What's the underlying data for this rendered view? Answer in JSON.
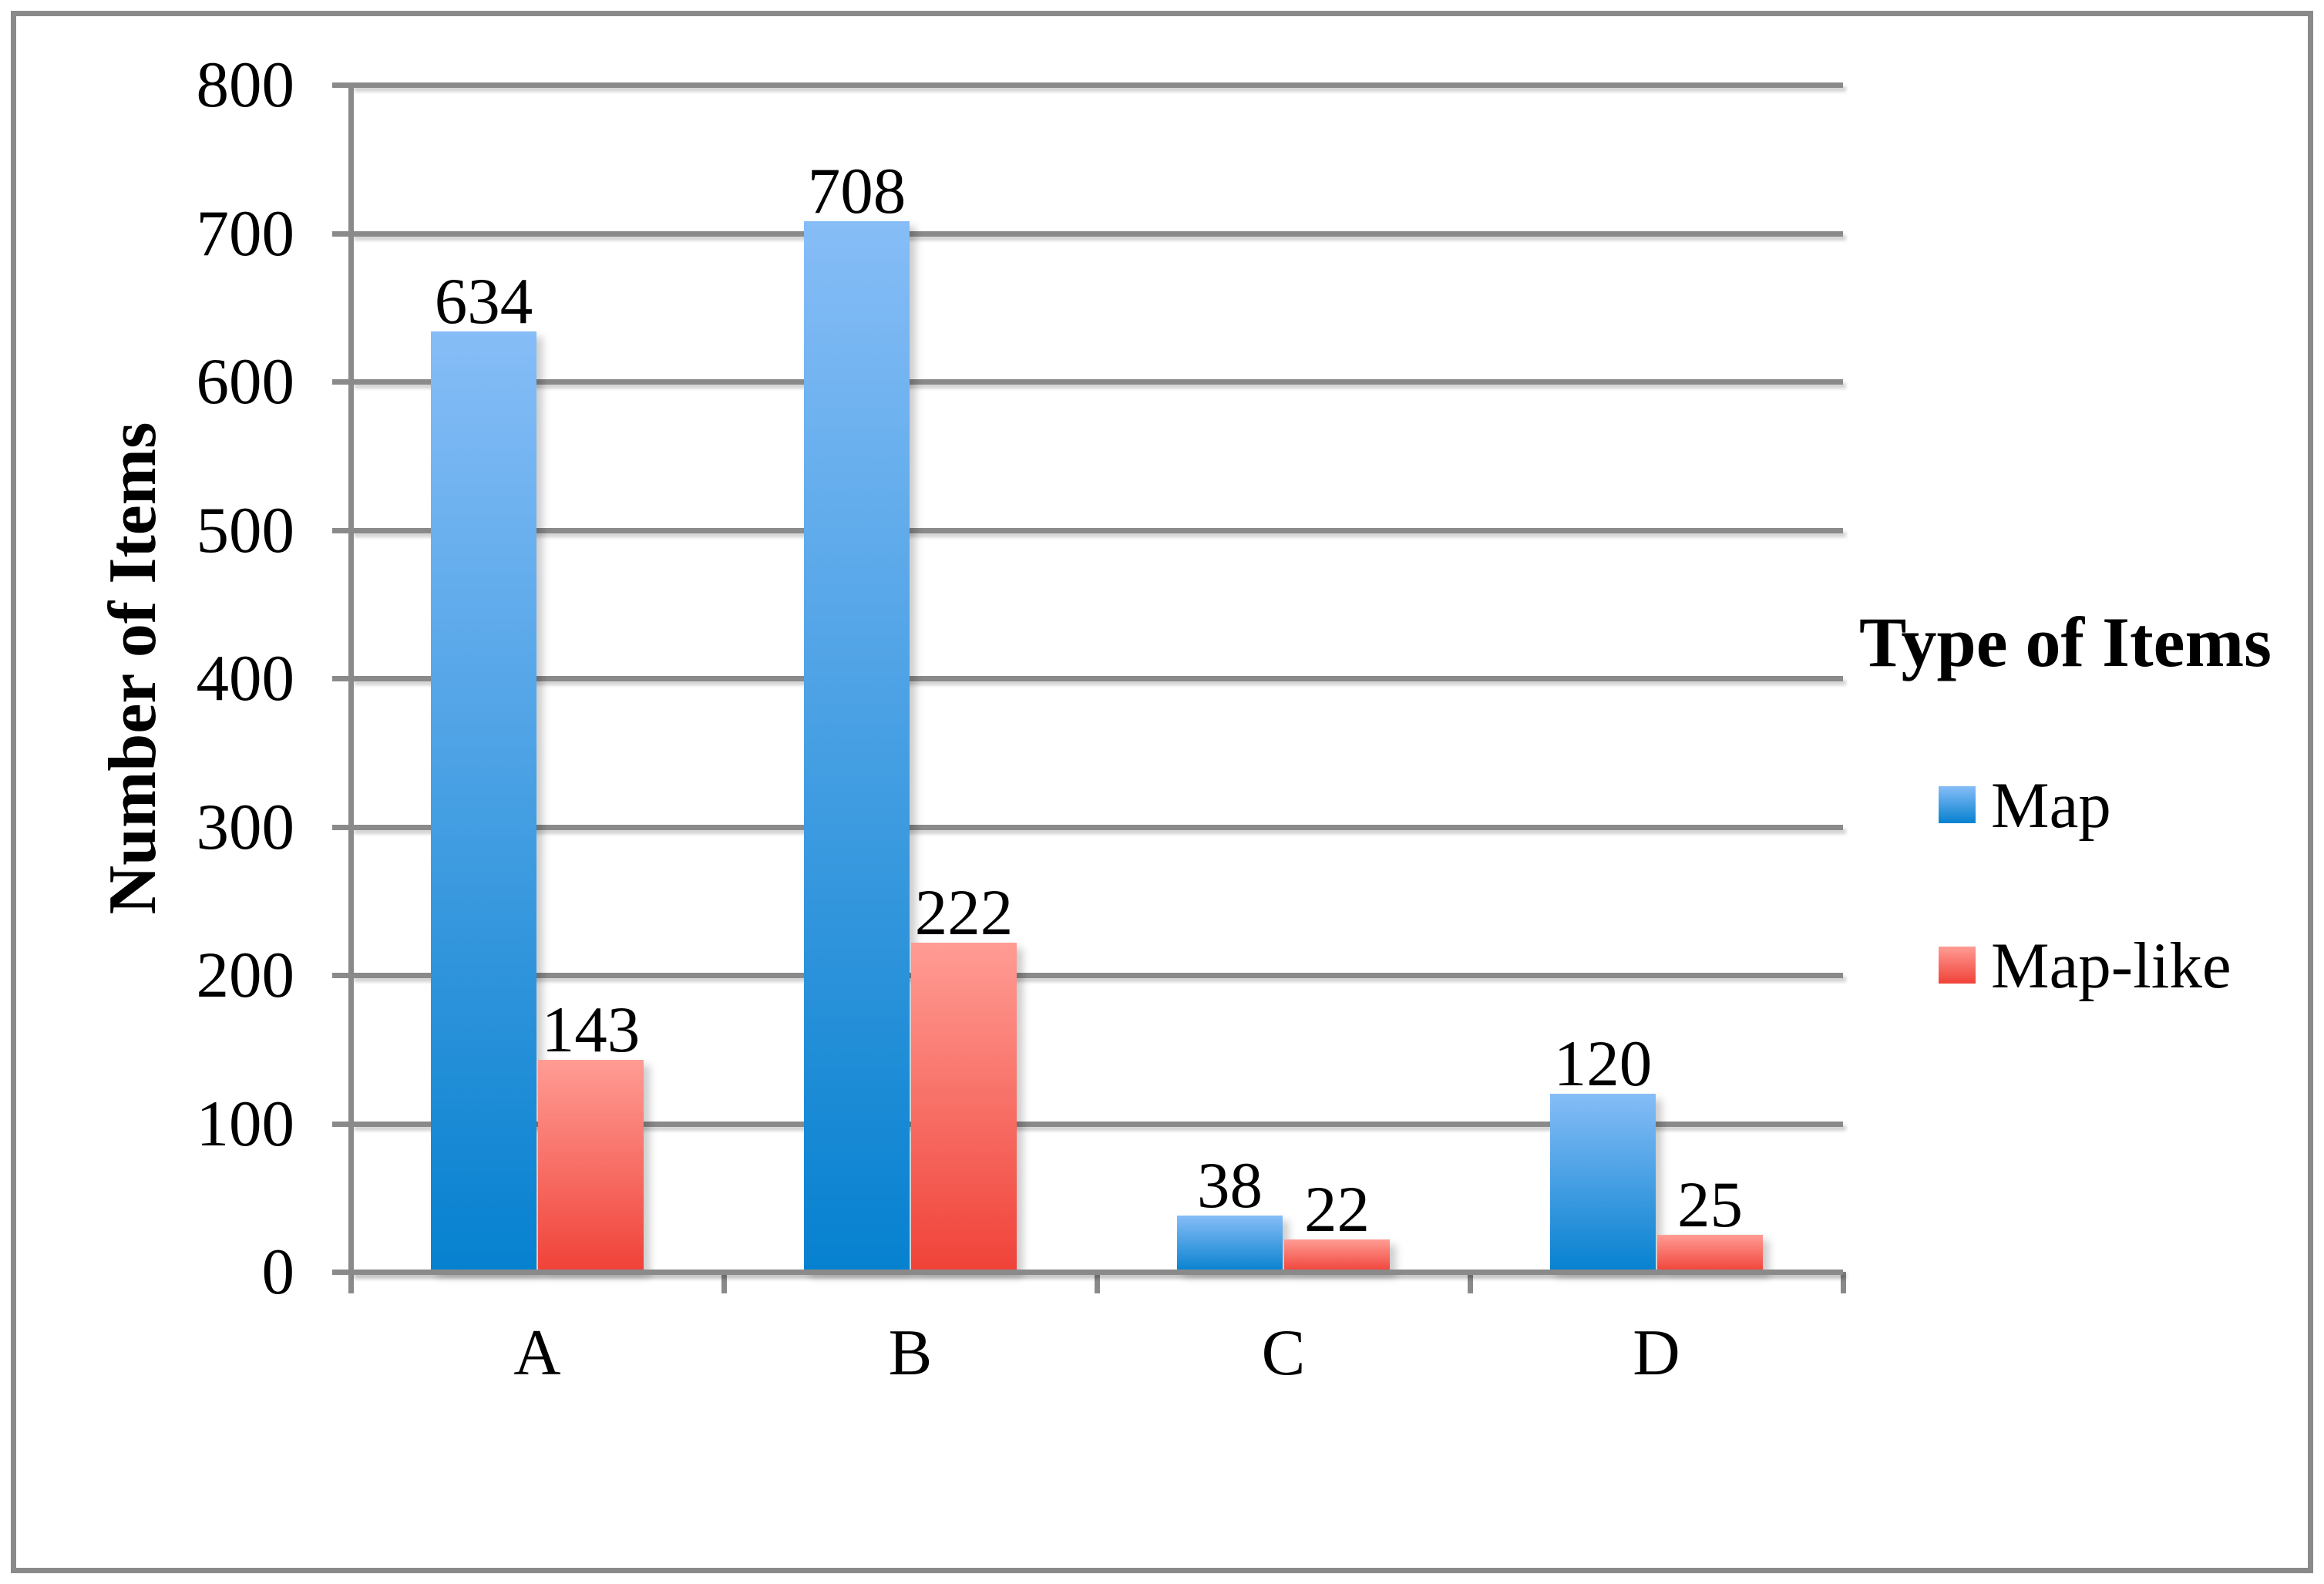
{
  "chart_data": {
    "type": "bar",
    "title": "",
    "categories": [
      "A",
      "B",
      "C",
      "D"
    ],
    "series": [
      {
        "name": "Map",
        "values": [
          634,
          708,
          38,
          120
        ],
        "color_top": "#86BDF7",
        "color_bottom": "#0681CF"
      },
      {
        "name": "Map-like",
        "values": [
          143,
          222,
          22,
          25
        ],
        "color_top": "#FF9C94",
        "color_bottom": "#F04238"
      }
    ],
    "xlabel": "",
    "ylabel": "Number of Items",
    "ylim": [
      0,
      800
    ],
    "ytick_interval": 100,
    "ytick_labels": [
      "0",
      "100",
      "200",
      "300",
      "400",
      "500",
      "600",
      "700",
      "800"
    ],
    "grid": true,
    "data_labels": true,
    "legend_title": "Type of Items",
    "legend_position": "right"
  },
  "colors": {
    "axis_gray": "#8A8A8A",
    "text": "#000000",
    "background": "#FFFFFF"
  }
}
